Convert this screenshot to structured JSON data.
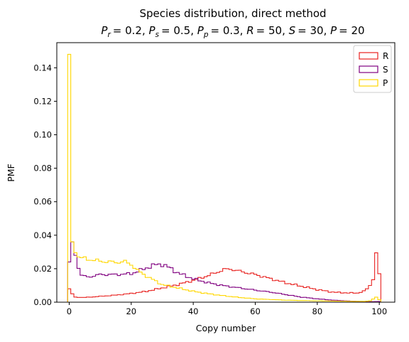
{
  "chart_data": {
    "type": "step-histogram",
    "title_line1": "Species distribution, direct method",
    "title_line2": "P_r = 0.2, P_s = 0.5, P_p = 0.3, R = 50, S = 30, P = 20",
    "title_parts": [
      {
        "sym": "P",
        "sub": "r",
        "rest": "= 0.2, "
      },
      {
        "sym": "P",
        "sub": "s",
        "rest": "= 0.5, "
      },
      {
        "sym": "P",
        "sub": "p",
        "rest": "= 0.3, "
      },
      {
        "sym": "R",
        "sub": "",
        "rest": "= 50, "
      },
      {
        "sym": "S",
        "sub": "",
        "rest": "= 30, "
      },
      {
        "sym": "P",
        "sub": "",
        "rest": "= 20"
      }
    ],
    "xlabel": "Copy number",
    "ylabel": "PMF",
    "xlim": [
      -4,
      105
    ],
    "ylim": [
      0,
      0.155
    ],
    "x_ticks": [
      0,
      20,
      40,
      60,
      80,
      100
    ],
    "y_ticks": [
      0.0,
      0.02,
      0.04,
      0.06,
      0.08,
      0.1,
      0.12,
      0.14
    ],
    "legend_position": "top-right",
    "series": [
      {
        "name": "R",
        "color": "#e8211f",
        "keypoints": [
          [
            -0.5,
            0
          ],
          [
            0,
            0.008
          ],
          [
            1,
            0.005
          ],
          [
            2,
            0.003
          ],
          [
            5,
            0.0028
          ],
          [
            10,
            0.0035
          ],
          [
            15,
            0.0042
          ],
          [
            20,
            0.0052
          ],
          [
            25,
            0.0065
          ],
          [
            30,
            0.0085
          ],
          [
            35,
            0.0105
          ],
          [
            40,
            0.013
          ],
          [
            45,
            0.016
          ],
          [
            50,
            0.0195
          ],
          [
            52,
            0.0198
          ],
          [
            55,
            0.0185
          ],
          [
            60,
            0.0165
          ],
          [
            65,
            0.014
          ],
          [
            70,
            0.0115
          ],
          [
            75,
            0.0095
          ],
          [
            80,
            0.0075
          ],
          [
            85,
            0.006
          ],
          [
            90,
            0.0055
          ],
          [
            93,
            0.0055
          ],
          [
            95,
            0.0065
          ],
          [
            96,
            0.008
          ],
          [
            97,
            0.01
          ],
          [
            98,
            0.014
          ],
          [
            99,
            0.0295
          ],
          [
            100,
            0.017
          ],
          [
            100.5,
            0
          ]
        ]
      },
      {
        "name": "S",
        "color": "#800080",
        "keypoints": [
          [
            -0.5,
            0
          ],
          [
            0,
            0.024
          ],
          [
            1,
            0.036
          ],
          [
            2,
            0.028
          ],
          [
            3,
            0.021
          ],
          [
            4,
            0.016
          ],
          [
            6,
            0.015
          ],
          [
            10,
            0.0165
          ],
          [
            15,
            0.0165
          ],
          [
            20,
            0.017
          ],
          [
            25,
            0.0205
          ],
          [
            28,
            0.0225
          ],
          [
            30,
            0.0225
          ],
          [
            32,
            0.021
          ],
          [
            35,
            0.0175
          ],
          [
            40,
            0.014
          ],
          [
            45,
            0.0115
          ],
          [
            50,
            0.0098
          ],
          [
            55,
            0.0085
          ],
          [
            60,
            0.0072
          ],
          [
            65,
            0.006
          ],
          [
            70,
            0.0045
          ],
          [
            75,
            0.003
          ],
          [
            80,
            0.002
          ],
          [
            85,
            0.0012
          ],
          [
            90,
            0.0007
          ],
          [
            95,
            0.0004
          ],
          [
            98,
            0.0003
          ],
          [
            100,
            0.0004
          ],
          [
            100.5,
            0
          ]
        ]
      },
      {
        "name": "P",
        "color": "#ffd700",
        "keypoints": [
          [
            -0.5,
            0
          ],
          [
            0,
            0.148
          ],
          [
            1,
            0.036
          ],
          [
            2,
            0.031
          ],
          [
            3,
            0.027
          ],
          [
            5,
            0.026
          ],
          [
            10,
            0.0245
          ],
          [
            15,
            0.0238
          ],
          [
            18,
            0.0242
          ],
          [
            20,
            0.0225
          ],
          [
            22,
            0.019
          ],
          [
            25,
            0.0155
          ],
          [
            28,
            0.0125
          ],
          [
            30,
            0.0105
          ],
          [
            35,
            0.0085
          ],
          [
            40,
            0.0065
          ],
          [
            45,
            0.005
          ],
          [
            50,
            0.0038
          ],
          [
            55,
            0.0028
          ],
          [
            60,
            0.002
          ],
          [
            70,
            0.0012
          ],
          [
            80,
            0.0008
          ],
          [
            90,
            0.0005
          ],
          [
            95,
            0.0005
          ],
          [
            97,
            0.0008
          ],
          [
            99,
            0.003
          ],
          [
            100,
            0.0015
          ],
          [
            100.5,
            0
          ]
        ]
      }
    ]
  }
}
